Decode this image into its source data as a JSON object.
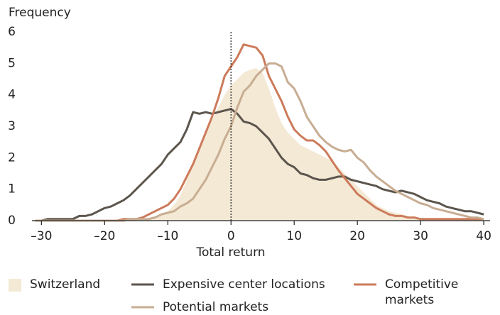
{
  "chart_data": {
    "type": "line",
    "x_label": "Total return",
    "y_label": "Frequency",
    "x": [
      -31,
      -30,
      -29,
      -28,
      -27,
      -26,
      -25,
      -24,
      -23,
      -22,
      -21,
      -20,
      -19,
      -18,
      -17,
      -16,
      -15,
      -14,
      -13,
      -12,
      -11,
      -10,
      -9,
      -8,
      -7,
      -6,
      -5,
      -4,
      -3,
      -2,
      -1,
      0,
      1,
      2,
      3,
      4,
      5,
      6,
      7,
      8,
      9,
      10,
      11,
      12,
      13,
      14,
      15,
      16,
      17,
      18,
      19,
      20,
      21,
      22,
      23,
      24,
      25,
      26,
      27,
      28,
      29,
      30,
      31,
      32,
      33,
      34,
      35,
      36,
      37,
      38,
      39,
      40
    ],
    "series": [
      {
        "name": "Switzerland",
        "style": "area",
        "color": "#f4e9d5",
        "values": [
          0,
          0,
          0,
          0,
          0,
          0,
          0,
          0,
          0,
          0,
          0,
          0,
          0,
          0,
          0,
          0.02,
          0.03,
          0.05,
          0.1,
          0.15,
          0.2,
          0.3,
          0.5,
          0.8,
          1.3,
          1.8,
          2.3,
          2.8,
          3.2,
          3.6,
          4.0,
          4.3,
          4.5,
          4.7,
          4.8,
          4.85,
          4.7,
          4.2,
          3.6,
          3.1,
          2.8,
          2.6,
          2.4,
          2.3,
          2.2,
          2.1,
          2.0,
          1.9,
          1.7,
          1.5,
          1.3,
          1.1,
          0.9,
          0.7,
          0.5,
          0.4,
          0.3,
          0.25,
          0.2,
          0.15,
          0.1,
          0.08,
          0.05,
          0.05,
          0.05,
          0.05,
          0.05,
          0.05,
          0.05,
          0.05,
          0.05,
          0.05
        ]
      },
      {
        "name": "Expensive center locations",
        "style": "line",
        "color": "#5b554d",
        "values": [
          0,
          0,
          0.05,
          0.05,
          0.05,
          0.05,
          0.05,
          0.15,
          0.15,
          0.2,
          0.3,
          0.4,
          0.45,
          0.55,
          0.65,
          0.8,
          1.0,
          1.2,
          1.4,
          1.6,
          1.8,
          2.1,
          2.3,
          2.5,
          2.9,
          3.45,
          3.4,
          3.45,
          3.4,
          3.45,
          3.5,
          3.55,
          3.4,
          3.15,
          3.1,
          3.0,
          2.8,
          2.6,
          2.3,
          2.0,
          1.8,
          1.7,
          1.5,
          1.45,
          1.35,
          1.3,
          1.3,
          1.35,
          1.4,
          1.4,
          1.3,
          1.25,
          1.2,
          1.15,
          1.1,
          1.0,
          0.95,
          0.9,
          0.95,
          0.9,
          0.85,
          0.75,
          0.65,
          0.6,
          0.55,
          0.45,
          0.4,
          0.35,
          0.3,
          0.3,
          0.25,
          0.2
        ]
      },
      {
        "name": "Competitive markets",
        "style": "line",
        "color": "#cc7b5b",
        "values": [
          0,
          0,
          0,
          0,
          0,
          0,
          0,
          0,
          0,
          0,
          0,
          0,
          0,
          0,
          0.05,
          0.05,
          0.05,
          0.1,
          0.2,
          0.3,
          0.4,
          0.5,
          0.7,
          1.0,
          1.4,
          1.8,
          2.3,
          2.8,
          3.3,
          3.9,
          4.6,
          4.9,
          5.2,
          5.6,
          5.55,
          5.5,
          5.25,
          4.6,
          4.2,
          3.8,
          3.3,
          2.9,
          2.7,
          2.55,
          2.55,
          2.4,
          2.2,
          1.9,
          1.6,
          1.35,
          1.1,
          0.85,
          0.7,
          0.55,
          0.4,
          0.3,
          0.2,
          0.15,
          0.15,
          0.1,
          0.1,
          0.05,
          0.05,
          0.05,
          0.05,
          0.05,
          0.05,
          0.05,
          0.05,
          0.05,
          0.05,
          0.05
        ]
      },
      {
        "name": "Potential markets",
        "style": "line",
        "color": "#c8ad93",
        "values": [
          0,
          0,
          0,
          0,
          0,
          0,
          0,
          0,
          0,
          0,
          0,
          0,
          0,
          0,
          0,
          0.05,
          0.05,
          0.05,
          0.05,
          0.1,
          0.2,
          0.25,
          0.3,
          0.45,
          0.55,
          0.7,
          1.0,
          1.3,
          1.7,
          2.1,
          2.6,
          3.0,
          3.6,
          4.1,
          4.3,
          4.6,
          4.8,
          5.0,
          5.0,
          4.9,
          4.4,
          4.2,
          3.8,
          3.3,
          3.0,
          2.7,
          2.5,
          2.35,
          2.25,
          2.2,
          2.25,
          2.0,
          1.85,
          1.6,
          1.4,
          1.25,
          1.1,
          0.95,
          0.85,
          0.75,
          0.65,
          0.55,
          0.5,
          0.4,
          0.35,
          0.3,
          0.25,
          0.2,
          0.15,
          0.1,
          0.1,
          0.05
        ]
      }
    ],
    "xlim": [
      -31.5,
      41
    ],
    "ylim": [
      0,
      6
    ],
    "xticks": [
      {
        "value": -30,
        "label": "–30"
      },
      {
        "value": -20,
        "label": "–20"
      },
      {
        "value": -10,
        "label": "–10"
      },
      0,
      10,
      20,
      30,
      40
    ],
    "yticks": [
      0,
      1,
      2,
      3,
      4,
      5,
      6
    ],
    "reference_x": 0,
    "grid": false
  }
}
